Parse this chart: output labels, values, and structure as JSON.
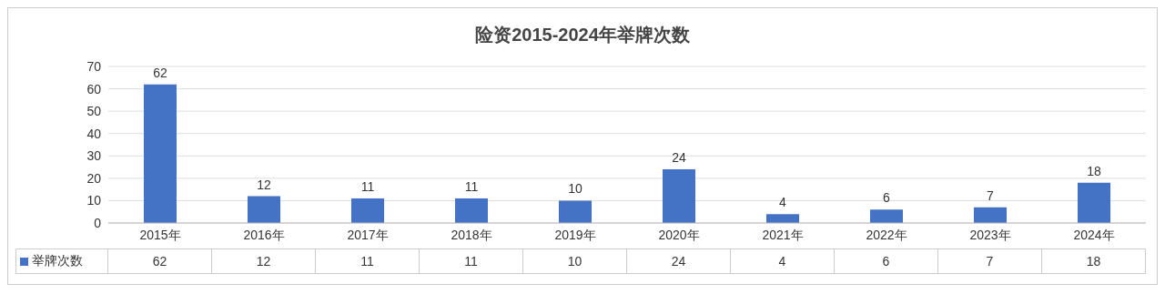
{
  "chart_data": {
    "type": "bar",
    "title": "险资2015-2024年举牌次数",
    "categories": [
      "2015年",
      "2016年",
      "2017年",
      "2018年",
      "2019年",
      "2020年",
      "2021年",
      "2022年",
      "2023年",
      "2024年"
    ],
    "series": [
      {
        "name": "举牌次数",
        "color": "#4472c4",
        "values": [
          62,
          12,
          11,
          11,
          10,
          24,
          4,
          6,
          7,
          18
        ]
      }
    ],
    "ylim": [
      0,
      70
    ],
    "yticks": [
      0,
      10,
      20,
      30,
      40,
      50,
      60,
      70
    ],
    "grid": "y",
    "legend": "bottom",
    "data_labels": true,
    "annotations": [
      "62",
      "12",
      "11",
      "11",
      "10",
      "24",
      "4",
      "6",
      "7",
      "18"
    ]
  }
}
